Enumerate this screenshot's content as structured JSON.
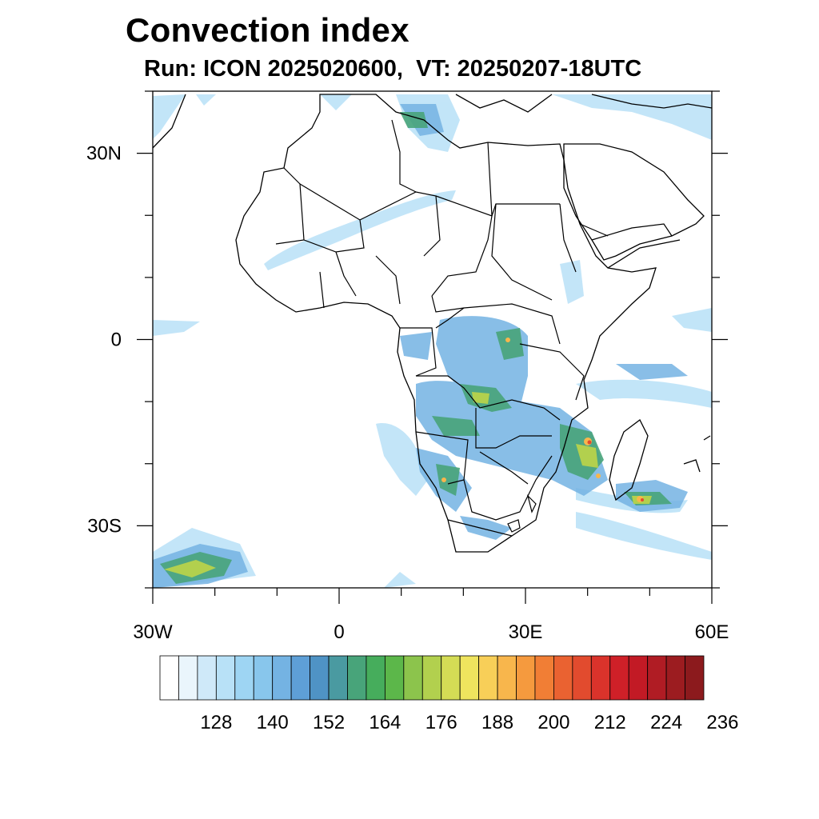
{
  "figure": {
    "title": "Convection index",
    "subtitle": "Run: ICON 2025020600,  VT: 20250207-18UTC"
  },
  "map": {
    "lon_range": [
      -30,
      60
    ],
    "lat_range": [
      -40,
      40
    ],
    "x_ticks": [
      {
        "lon": -30,
        "label": "30W"
      },
      {
        "lon": 0,
        "label": "0"
      },
      {
        "lon": 30,
        "label": "30E"
      },
      {
        "lon": 60,
        "label": "60E"
      }
    ],
    "y_ticks": [
      {
        "lat": 30,
        "label": "30N"
      },
      {
        "lat": 0,
        "label": "0"
      },
      {
        "lat": -30,
        "label": "30S"
      }
    ],
    "minor_tick_step_deg": 10
  },
  "colorbar": {
    "colors": [
      "#ffffff",
      "#eaf5fc",
      "#cfe9f9",
      "#b8e1f7",
      "#9ed5f3",
      "#88c6ec",
      "#74b3e3",
      "#5e9fd7",
      "#4f93c5",
      "#4a9aa1",
      "#48a47a",
      "#46ad5c",
      "#5cb74a",
      "#8cc44c",
      "#b2d04e",
      "#d4dc55",
      "#efe45e",
      "#f8cf58",
      "#f8b64c",
      "#f59a3e",
      "#f17e35",
      "#ea6231",
      "#e24b2e",
      "#da332b",
      "#cf2028",
      "#c21a25",
      "#b01c24",
      "#9c1c20",
      "#8c1a1d"
    ],
    "labels": [
      "128",
      "140",
      "152",
      "164",
      "176",
      "188",
      "200",
      "212",
      "224",
      "236"
    ]
  },
  "layers": {
    "coastline": "coastlines",
    "borders": "country-borders"
  }
}
